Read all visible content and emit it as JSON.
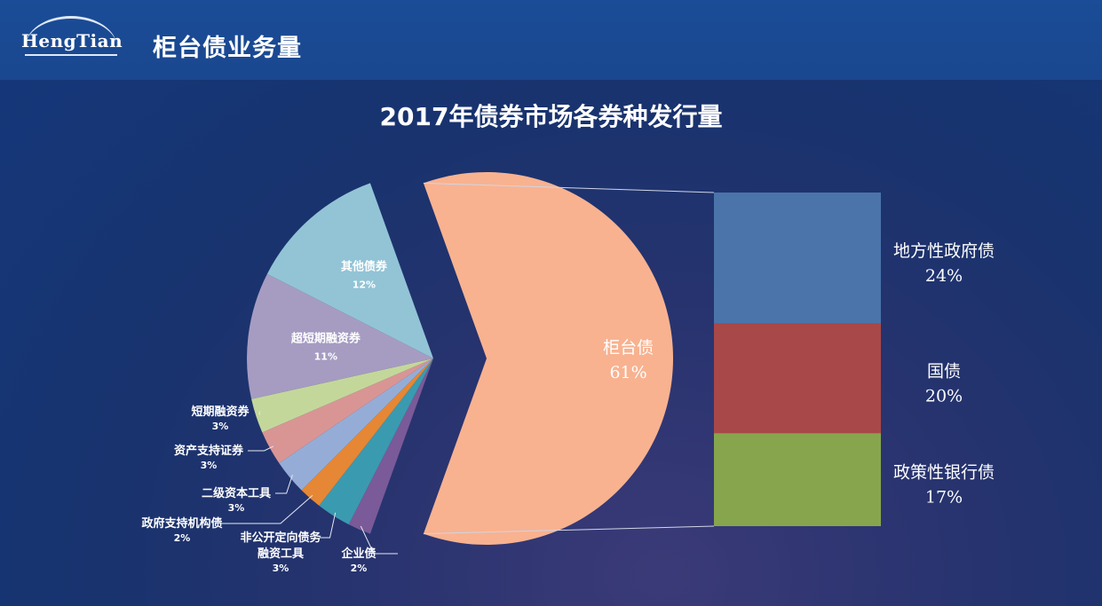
{
  "header": {
    "logo_text": "HengTian",
    "page_title": "柜台债业务量"
  },
  "chart_data": {
    "type": "pie",
    "title": "2017年债券市场各券种发行量",
    "slices": [
      {
        "name": "柜台债",
        "value": 61,
        "label": "61%",
        "color": "#f8b290"
      },
      {
        "name": "企业债",
        "value": 2,
        "label": "2%",
        "color": "#7a5a98"
      },
      {
        "name": "非公开定向债务融资工具",
        "name_lines": [
          "非公开定向债务",
          "融资工具"
        ],
        "value": 3,
        "label": "3%",
        "color": "#3a9ab0"
      },
      {
        "name": "政府支持机构债",
        "value": 2,
        "label": "2%",
        "color": "#e58735"
      },
      {
        "name": "二级资本工具",
        "value": 3,
        "label": "3%",
        "color": "#95add6"
      },
      {
        "name": "资产支持证券",
        "value": 3,
        "label": "3%",
        "color": "#d99594"
      },
      {
        "name": "短期融资券",
        "value": 3,
        "label": "3%",
        "color": "#c4d79b"
      },
      {
        "name": "超短期融资券",
        "value": 11,
        "label": "11%",
        "color": "#a69cc2"
      },
      {
        "name": "其他债券",
        "value": 12,
        "label": "12%",
        "color": "#92c4d6"
      }
    ],
    "exploded_slice": "柜台债",
    "breakdown": {
      "type": "stacked-bar",
      "items": [
        {
          "name": "地方性政府债",
          "value": 24,
          "label": "24%",
          "color": "#4a74aa"
        },
        {
          "name": "国债",
          "value": 20,
          "label": "20%",
          "color": "#a84848"
        },
        {
          "name": "政策性银行债",
          "value": 17,
          "label": "17%",
          "color": "#87a54d"
        }
      ]
    }
  }
}
